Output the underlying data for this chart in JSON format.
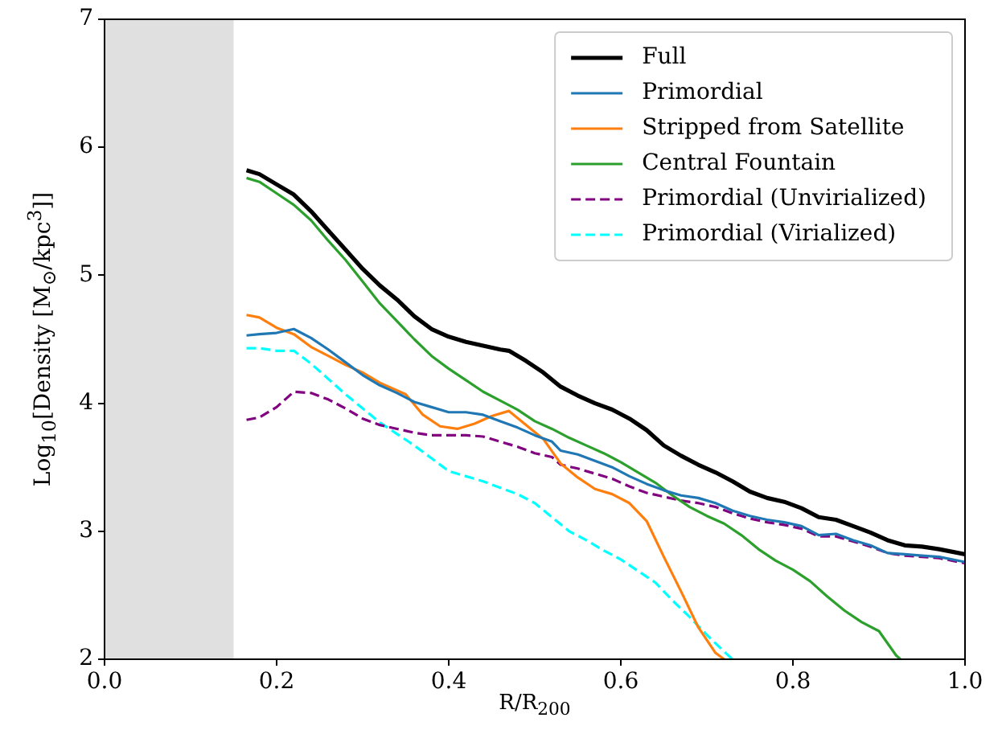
{
  "chart_data": {
    "type": "line",
    "xlabel": "R/R$_{200}$",
    "ylabel": "Log$_{10}$[Density [M$_{⊙}$/kpc$^{3}$]]",
    "xlim": [
      0,
      1
    ],
    "ylim": [
      2,
      7
    ],
    "xticks": [
      {
        "value": 0,
        "label": "0.0"
      },
      {
        "value": 0.2,
        "label": "0.2"
      },
      {
        "value": 0.4,
        "label": "0.4"
      },
      {
        "value": 0.6,
        "label": "0.6"
      },
      {
        "value": 0.8,
        "label": "0.8"
      },
      {
        "value": 1,
        "label": "1.0"
      }
    ],
    "yticks": [
      2,
      3,
      4,
      5,
      6,
      7
    ],
    "grid": false,
    "legend": "top right",
    "marker": "none",
    "bands": [
      {
        "axis": "x",
        "from": 0,
        "to": 0.15,
        "color": "#e0e0e0"
      }
    ],
    "series": [
      {
        "name": "Full",
        "color": "#000000",
        "line_style": "solid",
        "x": [
          0.165,
          0.18,
          0.2,
          0.22,
          0.24,
          0.26,
          0.28,
          0.3,
          0.32,
          0.34,
          0.36,
          0.38,
          0.4,
          0.42,
          0.44,
          0.46,
          0.47,
          0.49,
          0.51,
          0.53,
          0.55,
          0.57,
          0.59,
          0.61,
          0.63,
          0.65,
          0.67,
          0.69,
          0.71,
          0.73,
          0.75,
          0.77,
          0.79,
          0.81,
          0.83,
          0.85,
          0.87,
          0.89,
          0.91,
          0.93,
          0.95,
          0.97,
          1.0
        ],
        "values": [
          5.82,
          5.79,
          5.71,
          5.63,
          5.5,
          5.35,
          5.2,
          5.05,
          4.92,
          4.81,
          4.68,
          4.58,
          4.52,
          4.48,
          4.45,
          4.42,
          4.41,
          4.33,
          4.24,
          4.13,
          4.06,
          4.0,
          3.95,
          3.88,
          3.79,
          3.67,
          3.59,
          3.52,
          3.46,
          3.39,
          3.31,
          3.26,
          3.23,
          3.18,
          3.11,
          3.09,
          3.04,
          2.99,
          2.93,
          2.89,
          2.88,
          2.86,
          2.82
        ]
      },
      {
        "name": "Primordial",
        "color": "#1f77b4",
        "line_style": "solid",
        "x": [
          0.165,
          0.18,
          0.2,
          0.22,
          0.24,
          0.26,
          0.28,
          0.3,
          0.32,
          0.34,
          0.36,
          0.38,
          0.4,
          0.42,
          0.44,
          0.46,
          0.48,
          0.5,
          0.52,
          0.53,
          0.55,
          0.57,
          0.59,
          0.61,
          0.63,
          0.65,
          0.67,
          0.69,
          0.71,
          0.73,
          0.75,
          0.77,
          0.79,
          0.81,
          0.83,
          0.85,
          0.87,
          0.89,
          0.91,
          0.93,
          0.95,
          0.97,
          1.0
        ],
        "values": [
          4.53,
          4.54,
          4.55,
          4.58,
          4.51,
          4.42,
          4.32,
          4.22,
          4.14,
          4.08,
          4.01,
          3.97,
          3.93,
          3.93,
          3.91,
          3.86,
          3.81,
          3.75,
          3.7,
          3.63,
          3.6,
          3.55,
          3.5,
          3.43,
          3.37,
          3.32,
          3.28,
          3.26,
          3.22,
          3.16,
          3.12,
          3.09,
          3.07,
          3.04,
          2.97,
          2.98,
          2.93,
          2.89,
          2.83,
          2.82,
          2.81,
          2.8,
          2.76
        ]
      },
      {
        "name": "Stripped from Satellite",
        "color": "#ff7f0e",
        "line_style": "solid",
        "x": [
          0.165,
          0.18,
          0.2,
          0.22,
          0.24,
          0.26,
          0.28,
          0.3,
          0.32,
          0.34,
          0.35,
          0.37,
          0.39,
          0.41,
          0.43,
          0.45,
          0.47,
          0.49,
          0.51,
          0.53,
          0.55,
          0.57,
          0.59,
          0.61,
          0.63,
          0.65,
          0.67,
          0.69,
          0.71,
          0.72
        ],
        "values": [
          4.69,
          4.67,
          4.59,
          4.54,
          4.44,
          4.37,
          4.3,
          4.24,
          4.16,
          4.1,
          4.07,
          3.91,
          3.82,
          3.8,
          3.84,
          3.9,
          3.94,
          3.83,
          3.72,
          3.53,
          3.42,
          3.33,
          3.29,
          3.22,
          3.08,
          2.8,
          2.53,
          2.25,
          2.05,
          2.0
        ]
      },
      {
        "name": "Central Fountain",
        "color": "#2ca02c",
        "line_style": "solid",
        "x": [
          0.165,
          0.18,
          0.2,
          0.22,
          0.24,
          0.26,
          0.28,
          0.3,
          0.32,
          0.34,
          0.36,
          0.38,
          0.4,
          0.42,
          0.44,
          0.46,
          0.48,
          0.5,
          0.52,
          0.54,
          0.56,
          0.58,
          0.6,
          0.62,
          0.64,
          0.66,
          0.68,
          0.7,
          0.72,
          0.74,
          0.76,
          0.78,
          0.8,
          0.82,
          0.84,
          0.86,
          0.88,
          0.9,
          0.92,
          0.925
        ],
        "values": [
          5.76,
          5.73,
          5.64,
          5.55,
          5.43,
          5.27,
          5.12,
          4.95,
          4.78,
          4.64,
          4.5,
          4.37,
          4.27,
          4.18,
          4.09,
          4.02,
          3.95,
          3.86,
          3.8,
          3.73,
          3.67,
          3.61,
          3.54,
          3.46,
          3.38,
          3.28,
          3.19,
          3.12,
          3.06,
          2.97,
          2.86,
          2.77,
          2.7,
          2.61,
          2.49,
          2.38,
          2.29,
          2.22,
          2.03,
          2.0
        ]
      },
      {
        "name": "Primordial (Unvirialized)",
        "color": "#800080",
        "line_style": "dashed",
        "x": [
          0.165,
          0.18,
          0.2,
          0.22,
          0.24,
          0.26,
          0.28,
          0.3,
          0.32,
          0.34,
          0.36,
          0.38,
          0.4,
          0.42,
          0.44,
          0.46,
          0.48,
          0.5,
          0.52,
          0.53,
          0.55,
          0.57,
          0.59,
          0.61,
          0.63,
          0.65,
          0.67,
          0.69,
          0.71,
          0.73,
          0.75,
          0.77,
          0.79,
          0.81,
          0.83,
          0.85,
          0.87,
          0.89,
          0.91,
          0.93,
          0.95,
          0.97,
          1.0
        ],
        "values": [
          3.87,
          3.89,
          3.97,
          4.09,
          4.08,
          4.03,
          3.96,
          3.88,
          3.83,
          3.8,
          3.77,
          3.75,
          3.75,
          3.75,
          3.74,
          3.7,
          3.66,
          3.61,
          3.58,
          3.52,
          3.49,
          3.45,
          3.41,
          3.35,
          3.3,
          3.27,
          3.24,
          3.22,
          3.19,
          3.14,
          3.1,
          3.07,
          3.05,
          3.02,
          2.96,
          2.96,
          2.92,
          2.88,
          2.83,
          2.81,
          2.8,
          2.79,
          2.75
        ]
      },
      {
        "name": "Primordial (Virialized)",
        "color": "#00ffff",
        "line_style": "dashed",
        "x": [
          0.165,
          0.18,
          0.2,
          0.22,
          0.24,
          0.26,
          0.28,
          0.3,
          0.32,
          0.34,
          0.36,
          0.38,
          0.4,
          0.42,
          0.44,
          0.46,
          0.48,
          0.5,
          0.52,
          0.54,
          0.56,
          0.58,
          0.6,
          0.62,
          0.64,
          0.66,
          0.68,
          0.7,
          0.72,
          0.73
        ],
        "values": [
          4.43,
          4.43,
          4.41,
          4.41,
          4.31,
          4.19,
          4.07,
          3.96,
          3.85,
          3.76,
          3.67,
          3.57,
          3.47,
          3.43,
          3.39,
          3.34,
          3.29,
          3.22,
          3.11,
          3.0,
          2.93,
          2.85,
          2.78,
          2.69,
          2.6,
          2.46,
          2.33,
          2.19,
          2.06,
          2.0
        ]
      }
    ]
  }
}
